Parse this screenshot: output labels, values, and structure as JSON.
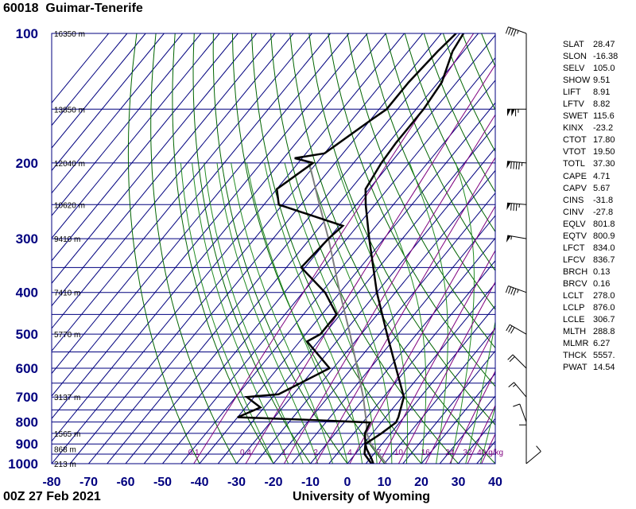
{
  "header": {
    "station_id": "60018",
    "station_name": "Guimar-Tenerife"
  },
  "footer": {
    "time": "00Z 27 Feb 2021",
    "source": "University of Wyoming"
  },
  "colors": {
    "grid": "#00007f",
    "dry_adiabat": "#006400",
    "moist_adiabat": "#228b22",
    "mixing_ratio": "#7f007f",
    "temperature": "#000000",
    "dewpoint": "#000000",
    "parcel": "#7f7f7f",
    "axis_labels": "#00007f"
  },
  "chart_data": {
    "type": "skew-t",
    "pressure_ticks": [
      100,
      200,
      300,
      400,
      500,
      600,
      700,
      800,
      900,
      1000
    ],
    "temperature_ticks": [
      -80,
      -70,
      -60,
      -50,
      -40,
      -30,
      -20,
      -10,
      0,
      10,
      20,
      30,
      40
    ],
    "xlim": [
      -80,
      40
    ],
    "ylim": [
      1000,
      100
    ],
    "height_labels": [
      {
        "p": 100,
        "label": "16350 m"
      },
      {
        "p": 150,
        "label": "13850 m"
      },
      {
        "p": 200,
        "label": "12040 m"
      },
      {
        "p": 250,
        "label": "10620 m"
      },
      {
        "p": 300,
        "label": "9410 m"
      },
      {
        "p": 400,
        "label": "7410 m"
      },
      {
        "p": 500,
        "label": "5770 m"
      },
      {
        "p": 700,
        "label": "3137 m"
      },
      {
        "p": 850,
        "label": "1565 m"
      },
      {
        "p": 925,
        "label": "868 m"
      },
      {
        "p": 1000,
        "label": "213 m"
      }
    ],
    "mixing_ratio_labels": [
      "0.1",
      "0.4",
      "1",
      "2",
      "4",
      "7",
      "10",
      "16",
      "24",
      "32",
      "40",
      "g/kg"
    ],
    "mixing_ratio_values": [
      0.1,
      0.4,
      1,
      2,
      4,
      7,
      10,
      16,
      24,
      32,
      40
    ],
    "temperature_profile": [
      [
        1000,
        7.0
      ],
      [
        975,
        5.5
      ],
      [
        925,
        2.0
      ],
      [
        900,
        0.5
      ],
      [
        850,
        2.5
      ],
      [
        802,
        4.0
      ],
      [
        780,
        3.5
      ],
      [
        700,
        0.5
      ],
      [
        600,
        -8.0
      ],
      [
        500,
        -18.0
      ],
      [
        400,
        -30.0
      ],
      [
        300,
        -44.0
      ],
      [
        250,
        -52.5
      ],
      [
        230,
        -56.0
      ],
      [
        200,
        -57.5
      ],
      [
        180,
        -58.0
      ],
      [
        150,
        -58.0
      ],
      [
        130,
        -59.0
      ],
      [
        110,
        -63.0
      ],
      [
        100,
        -64.0
      ]
    ],
    "dewpoint_profile": [
      [
        1000,
        6.5
      ],
      [
        950,
        2.5
      ],
      [
        900,
        0.5
      ],
      [
        850,
        -2.0
      ],
      [
        802,
        -3.0
      ],
      [
        790,
        -22.0
      ],
      [
        780,
        -40.0
      ],
      [
        760,
        -38.0
      ],
      [
        740,
        -36.0
      ],
      [
        700,
        -42.0
      ],
      [
        690,
        -34.0
      ],
      [
        600,
        -26.0
      ],
      [
        520,
        -38.0
      ],
      [
        500,
        -36.0
      ],
      [
        450,
        -36.0
      ],
      [
        400,
        -44.0
      ],
      [
        350,
        -56.0
      ],
      [
        300,
        -55.0
      ],
      [
        280,
        -54.0
      ],
      [
        250,
        -76.0
      ],
      [
        230,
        -80.0
      ],
      [
        200,
        -76.0
      ],
      [
        195,
        -82.0
      ],
      [
        190,
        -75.0
      ],
      [
        160,
        -70.0
      ],
      [
        150,
        -68.0
      ],
      [
        130,
        -68.0
      ],
      [
        110,
        -67.0
      ],
      [
        100,
        -66.0
      ]
    ],
    "parcel_profile": [
      [
        1000,
        10.5
      ],
      [
        900,
        2.0
      ],
      [
        850,
        -1.5
      ],
      [
        802,
        -4.0
      ],
      [
        700,
        -10.5
      ],
      [
        600,
        -18.5
      ],
      [
        500,
        -28.0
      ],
      [
        400,
        -40.0
      ],
      [
        300,
        -55.0
      ],
      [
        250,
        -65.0
      ],
      [
        200,
        -77.0
      ]
    ],
    "wind_barbs": [
      {
        "p": 100,
        "dir": 290,
        "spd": 45
      },
      {
        "p": 150,
        "dir": 270,
        "spd": 115
      },
      {
        "p": 200,
        "dir": 275,
        "spd": 95
      },
      {
        "p": 250,
        "dir": 275,
        "spd": 85
      },
      {
        "p": 300,
        "dir": 280,
        "spd": 55
      },
      {
        "p": 400,
        "dir": 290,
        "spd": 45
      },
      {
        "p": 500,
        "dir": 300,
        "spd": 30
      },
      {
        "p": 600,
        "dir": 315,
        "spd": 20
      },
      {
        "p": 700,
        "dir": 320,
        "spd": 15
      },
      {
        "p": 800,
        "dir": 340,
        "spd": 10
      },
      {
        "p": 900,
        "dir": 0,
        "spd": 10
      },
      {
        "p": 1000,
        "dir": 50,
        "spd": 10
      }
    ]
  },
  "indices": [
    {
      "name": "SLAT",
      "value": "28.47"
    },
    {
      "name": "SLON",
      "value": "-16.38"
    },
    {
      "name": "SELV",
      "value": "105.0"
    },
    {
      "name": "SHOW",
      "value": "9.51"
    },
    {
      "name": "LIFT",
      "value": "8.91"
    },
    {
      "name": "LFTV",
      "value": "8.82"
    },
    {
      "name": "SWET",
      "value": "115.6"
    },
    {
      "name": "KINX",
      "value": "-23.2"
    },
    {
      "name": "CTOT",
      "value": "17.80"
    },
    {
      "name": "VTOT",
      "value": "19.50"
    },
    {
      "name": "TOTL",
      "value": "37.30"
    },
    {
      "name": "CAPE",
      "value": "4.71"
    },
    {
      "name": "CAPV",
      "value": "5.67"
    },
    {
      "name": "CINS",
      "value": "-31.8"
    },
    {
      "name": "CINV",
      "value": "-27.8"
    },
    {
      "name": "EQLV",
      "value": "801.8"
    },
    {
      "name": "EQTV",
      "value": "800.9"
    },
    {
      "name": "LFCT",
      "value": "834.0"
    },
    {
      "name": "LFCV",
      "value": "836.7"
    },
    {
      "name": "BRCH",
      "value": "0.13"
    },
    {
      "name": "BRCV",
      "value": "0.16"
    },
    {
      "name": "LCLT",
      "value": "278.0"
    },
    {
      "name": "LCLP",
      "value": "876.0"
    },
    {
      "name": "LCLE",
      "value": "306.7"
    },
    {
      "name": "MLTH",
      "value": "288.8"
    },
    {
      "name": "MLMR",
      "value": "6.27"
    },
    {
      "name": "THCK",
      "value": "5557."
    },
    {
      "name": "PWAT",
      "value": "14.54"
    }
  ]
}
